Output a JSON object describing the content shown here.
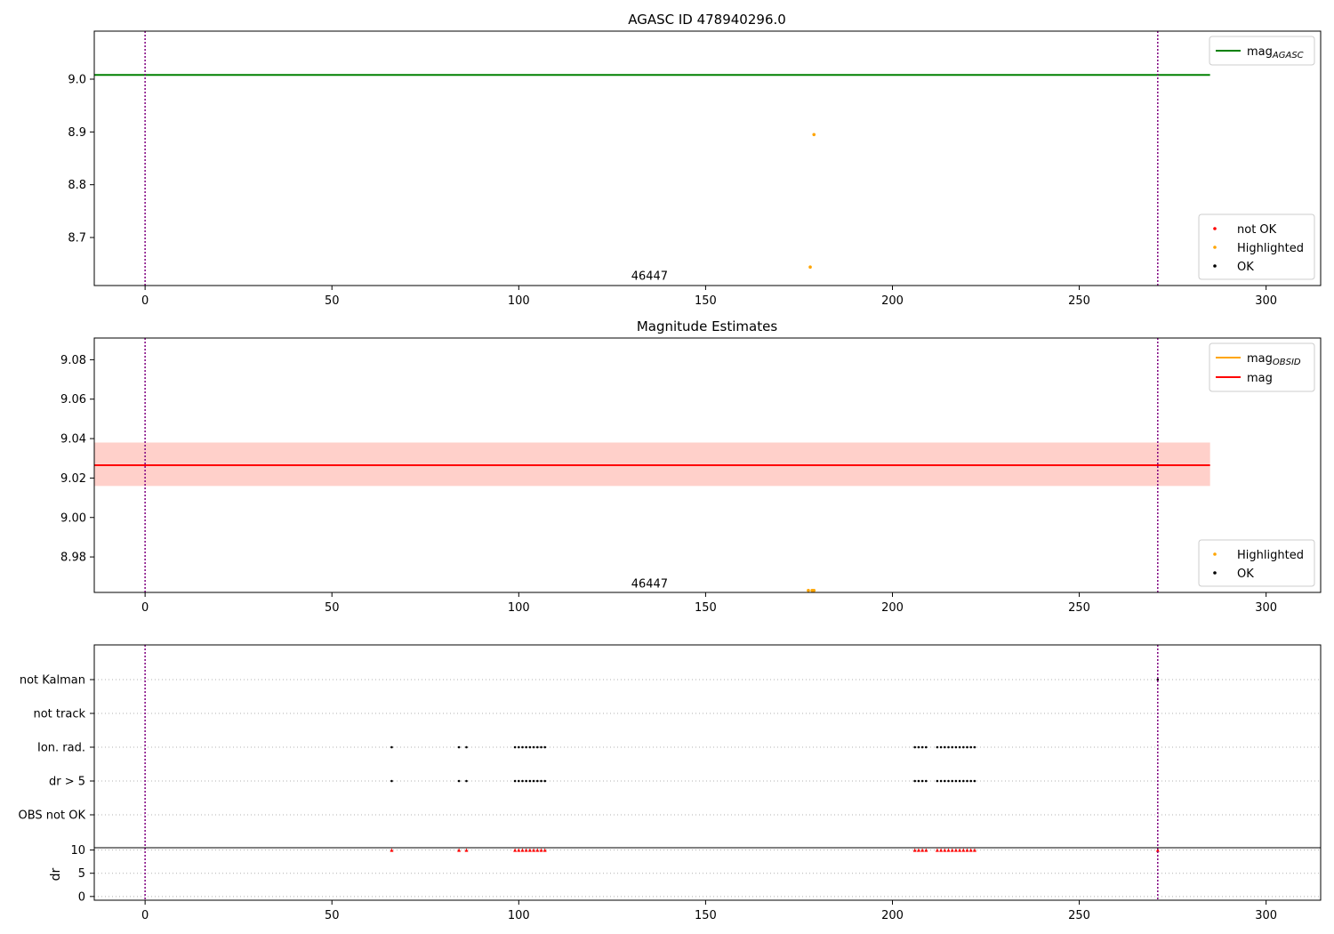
{
  "chart_data": [
    {
      "type": "scatter",
      "title": "AGASC ID 478940296.0",
      "xlim": [
        -13.6,
        314.6
      ],
      "ylim": [
        8.609,
        9.091
      ],
      "x_ticks": [
        0,
        50,
        100,
        150,
        200,
        250,
        300
      ],
      "y_ticks": [
        8.7,
        8.8,
        8.9,
        9.0
      ],
      "grid": false,
      "annotation": {
        "text": "46447",
        "x": 135,
        "y": 8.62
      },
      "vlines": [
        0,
        271
      ],
      "hline": {
        "name": "mag_AGASC",
        "y": 9.008,
        "x_range": [
          -13.6,
          285
        ],
        "color": "#008000"
      },
      "legend_lines": [
        {
          "name": "mag",
          "sub": "AGASC",
          "color": "#008000"
        }
      ],
      "legend_points": [
        {
          "name": "not OK",
          "color": "#ff0000"
        },
        {
          "name": "Highlighted",
          "color": "#ffa500"
        },
        {
          "name": "OK",
          "color": "#000000"
        }
      ],
      "series": [
        {
          "name": "Highlighted",
          "color": "#ffa500",
          "points": [
            [
              179,
              8.895
            ],
            [
              178,
              8.644
            ]
          ]
        }
      ]
    },
    {
      "type": "scatter",
      "title": "Magnitude Estimates",
      "xlim": [
        -13.6,
        314.6
      ],
      "ylim": [
        8.962,
        9.091
      ],
      "x_ticks": [
        0,
        50,
        100,
        150,
        200,
        250,
        300
      ],
      "y_ticks": [
        8.98,
        9.0,
        9.02,
        9.04,
        9.06,
        9.08
      ],
      "grid": false,
      "annotation": {
        "text": "46447",
        "x": 135,
        "y": 8.9645
      },
      "vlines": [
        0,
        271
      ],
      "band": {
        "y_range": [
          9.016,
          9.038
        ],
        "x_range": [
          -13.6,
          285
        ]
      },
      "hline": {
        "name": "mag",
        "y": 9.0265,
        "x_range": [
          -13.6,
          285
        ],
        "color": "#ff0000"
      },
      "legend_lines": [
        {
          "name": "mag",
          "sub": "OBSID",
          "color": "#ffa500"
        },
        {
          "name": "mag",
          "sub": "",
          "color": "#ff0000"
        }
      ],
      "legend_points": [
        {
          "name": "Highlighted",
          "color": "#ffa500"
        },
        {
          "name": "OK",
          "color": "#000000"
        }
      ],
      "series": [
        {
          "name": "Highlighted",
          "color": "#ffa500",
          "points": [
            [
              177.5,
              8.963
            ],
            [
              178.5,
              8.963
            ],
            [
              179,
              8.963
            ]
          ]
        }
      ]
    },
    {
      "type": "scatter",
      "title": "",
      "xlim": [
        -13.6,
        314.6
      ],
      "x_ticks": [
        0,
        50,
        100,
        150,
        200,
        250,
        300
      ],
      "flag_rows": [
        "not Kalman",
        "not track",
        "Ion. rad.",
        "dr > 5",
        "OBS not OK"
      ],
      "flag_points": {
        "Ion. rad.": [
          66,
          84,
          86,
          99,
          100,
          101,
          102,
          103,
          104,
          105,
          106,
          107,
          206,
          207,
          208,
          209,
          212,
          213,
          214,
          215,
          216,
          217,
          218,
          219,
          220,
          221,
          222
        ],
        "dr > 5": [
          66,
          84,
          86,
          99,
          100,
          101,
          102,
          103,
          104,
          105,
          106,
          107,
          206,
          207,
          208,
          209,
          212,
          213,
          214,
          215,
          216,
          217,
          218,
          219,
          220,
          221,
          222
        ],
        "not Kalman": [
          271
        ]
      },
      "dr_ylabel": "dr",
      "dr_ylim": [
        -0.8,
        10.5
      ],
      "dr_ticks": [
        0,
        5,
        10
      ],
      "dr_capped_value": 10,
      "dr_capped_x": [
        66,
        84,
        86,
        99,
        100,
        101,
        102,
        103,
        104,
        105,
        106,
        107,
        206,
        207,
        208,
        209,
        212,
        213,
        214,
        215,
        216,
        217,
        218,
        219,
        220,
        221,
        222,
        271
      ],
      "vlines": [
        0,
        271
      ]
    }
  ]
}
